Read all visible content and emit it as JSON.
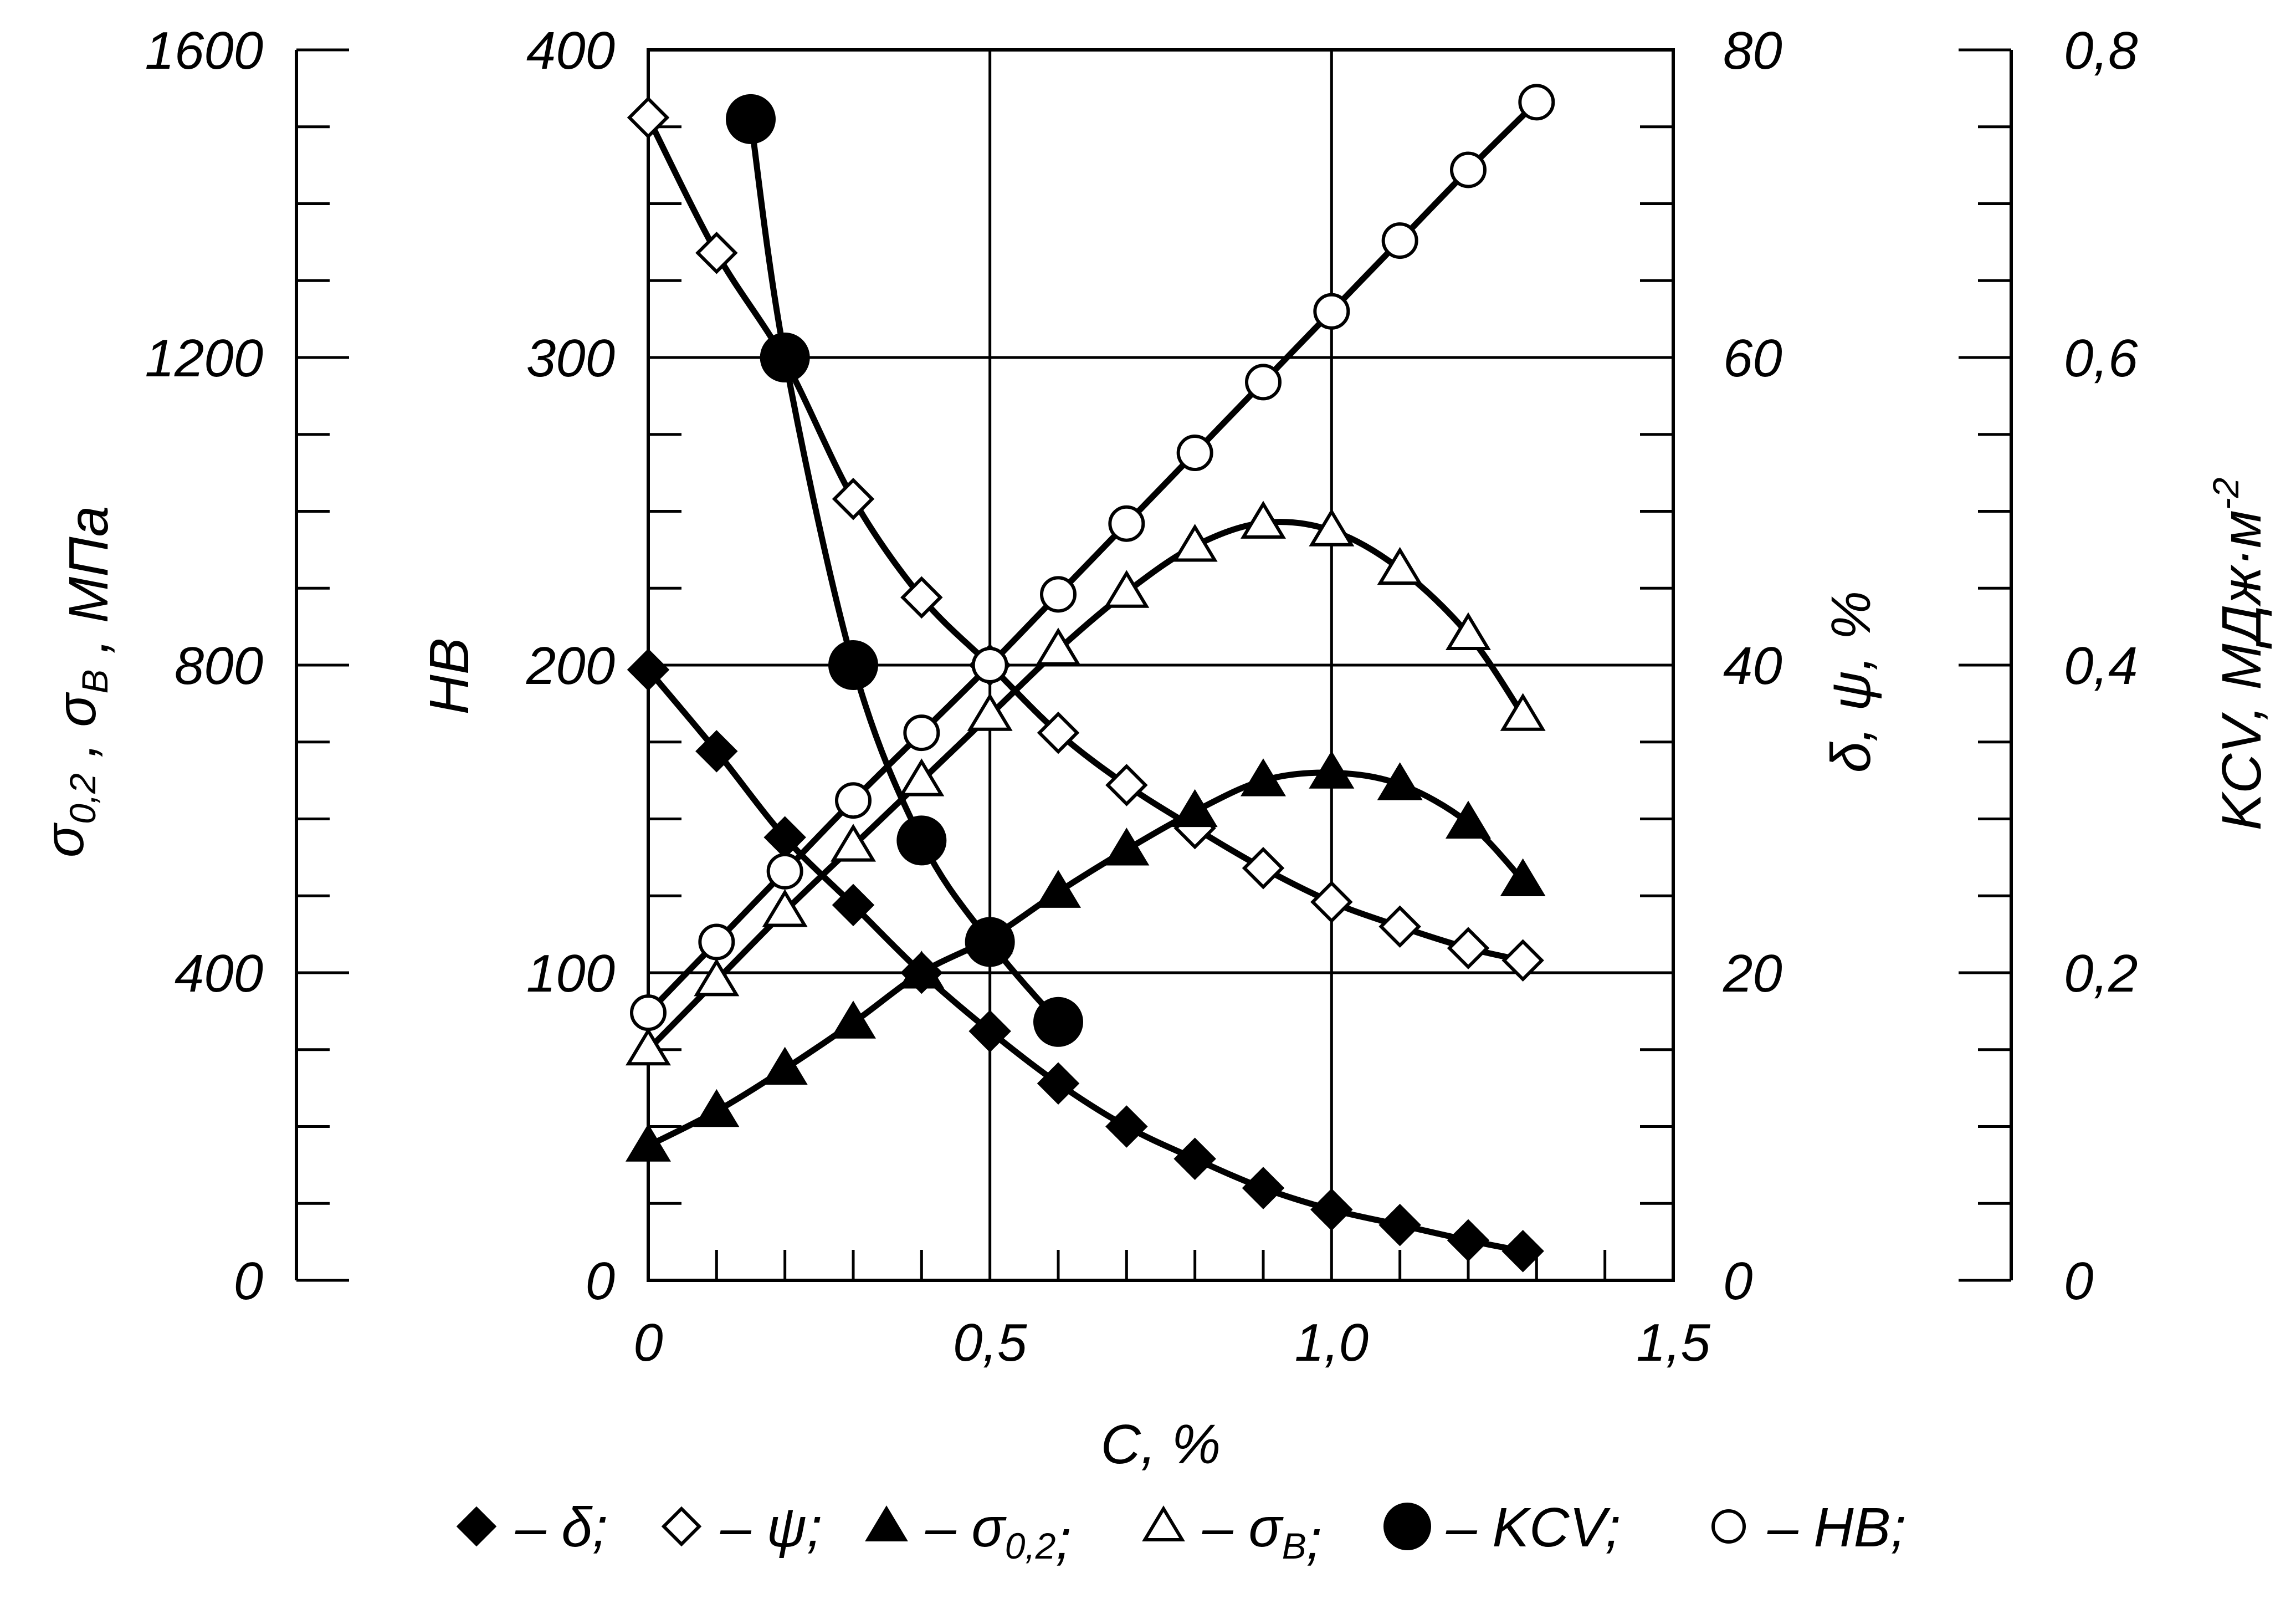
{
  "chart_data": {
    "type": "line",
    "title": "",
    "xlabel": "C, %",
    "x_ticks": [
      "0",
      "0,5",
      "1,0",
      "1,5"
    ],
    "xlim": [
      0,
      1.5
    ],
    "grid": true,
    "legend_position": "bottom",
    "axes": [
      {
        "id": "strength",
        "label_parts": [
          [
            "σ",
            ""
          ],
          [
            "0,2",
            "sub"
          ],
          [
            " , σ",
            ""
          ],
          [
            "B",
            "sub"
          ],
          [
            " , МПа",
            ""
          ]
        ],
        "range": [
          0,
          1600
        ],
        "ticks": [
          "0",
          "400",
          "800",
          "1200",
          "1600"
        ]
      },
      {
        "id": "hb",
        "label_parts": [
          [
            "HB",
            ""
          ]
        ],
        "range": [
          0,
          400
        ],
        "ticks": [
          "0",
          "100",
          "200",
          "300",
          "400"
        ]
      },
      {
        "id": "plasticity",
        "label_parts": [
          [
            "δ, ψ, %",
            ""
          ]
        ],
        "range": [
          0,
          80
        ],
        "ticks": [
          "0",
          "20",
          "40",
          "60",
          "80"
        ]
      },
      {
        "id": "kcv",
        "label_parts": [
          [
            "KCV, МДж·м",
            ""
          ],
          [
            "-2",
            "sup"
          ]
        ],
        "range": [
          0,
          0.8
        ],
        "ticks": [
          "0",
          "0,2",
          "0,4",
          "0,6",
          "0,8"
        ]
      }
    ],
    "series": [
      {
        "name": "δ",
        "name_parts": [
          [
            "δ",
            ""
          ]
        ],
        "axis": "plasticity",
        "marker": "diamond",
        "filled": true,
        "points": [
          [
            0,
            39.7
          ],
          [
            0.1,
            34.4
          ],
          [
            0.2,
            28.8
          ],
          [
            0.3,
            24.4
          ],
          [
            0.4,
            20
          ],
          [
            0.5,
            16.2
          ],
          [
            0.6,
            12.8
          ],
          [
            0.7,
            10
          ],
          [
            0.8,
            7.9
          ],
          [
            0.9,
            6
          ],
          [
            1.0,
            4.6
          ],
          [
            1.1,
            3.6
          ],
          [
            1.2,
            2.6
          ],
          [
            1.28,
            1.9
          ]
        ]
      },
      {
        "name": "ψ",
        "name_parts": [
          [
            "ψ",
            ""
          ]
        ],
        "axis": "plasticity",
        "marker": "diamond",
        "filled": false,
        "points": [
          [
            0,
            75.6
          ],
          [
            0.1,
            66.8
          ],
          [
            0.2,
            59.8
          ],
          [
            0.3,
            50.8
          ],
          [
            0.4,
            44.4
          ],
          [
            0.5,
            40
          ],
          [
            0.6,
            35.6
          ],
          [
            0.7,
            32.2
          ],
          [
            0.8,
            29.4
          ],
          [
            0.9,
            26.8
          ],
          [
            1.0,
            24.6
          ],
          [
            1.1,
            23
          ],
          [
            1.2,
            21.6
          ],
          [
            1.28,
            20.8
          ]
        ]
      },
      {
        "name": "σ0,2",
        "name_parts": [
          [
            "σ",
            ""
          ],
          [
            "0,2",
            "sub"
          ]
        ],
        "axis": "strength",
        "marker": "triangle",
        "filled": true,
        "points": [
          [
            0,
            175
          ],
          [
            0.1,
            220
          ],
          [
            0.2,
            275
          ],
          [
            0.3,
            335
          ],
          [
            0.4,
            400
          ],
          [
            0.5,
            445
          ],
          [
            0.6,
            505
          ],
          [
            0.7,
            560
          ],
          [
            0.8,
            610
          ],
          [
            0.9,
            650
          ],
          [
            1.0,
            660
          ],
          [
            1.1,
            645
          ],
          [
            1.2,
            595
          ],
          [
            1.28,
            520
          ]
        ]
      },
      {
        "name": "σB",
        "name_parts": [
          [
            "σ",
            ""
          ],
          [
            "B",
            "sub"
          ]
        ],
        "axis": "strength",
        "marker": "triangle",
        "filled": false,
        "points": [
          [
            0,
            300
          ],
          [
            0.1,
            390
          ],
          [
            0.2,
            480
          ],
          [
            0.3,
            565
          ],
          [
            0.4,
            650
          ],
          [
            0.5,
            735
          ],
          [
            0.6,
            820
          ],
          [
            0.7,
            895
          ],
          [
            0.8,
            955
          ],
          [
            0.9,
            985
          ],
          [
            1.0,
            975
          ],
          [
            1.1,
            925
          ],
          [
            1.2,
            840
          ],
          [
            1.28,
            735
          ]
        ]
      },
      {
        "name": "KCV",
        "name_parts": [
          [
            "KCV",
            ""
          ]
        ],
        "axis": "kcv",
        "marker": "circle",
        "filled": true,
        "points": [
          [
            0.15,
            0.755
          ],
          [
            0.2,
            0.6
          ],
          [
            0.3,
            0.4
          ],
          [
            0.4,
            0.286
          ],
          [
            0.5,
            0.22
          ],
          [
            0.6,
            0.168
          ]
        ]
      },
      {
        "name": "HB",
        "name_parts": [
          [
            "HB",
            ""
          ]
        ],
        "axis": "hb",
        "marker": "circle",
        "filled": false,
        "points": [
          [
            0,
            87
          ],
          [
            0.1,
            110
          ],
          [
            0.2,
            133
          ],
          [
            0.3,
            156
          ],
          [
            0.4,
            178
          ],
          [
            0.5,
            200
          ],
          [
            0.6,
            223
          ],
          [
            0.7,
            246
          ],
          [
            0.8,
            269
          ],
          [
            0.9,
            292
          ],
          [
            1.0,
            315
          ],
          [
            1.1,
            338
          ],
          [
            1.2,
            361
          ],
          [
            1.3,
            383
          ]
        ]
      }
    ]
  }
}
